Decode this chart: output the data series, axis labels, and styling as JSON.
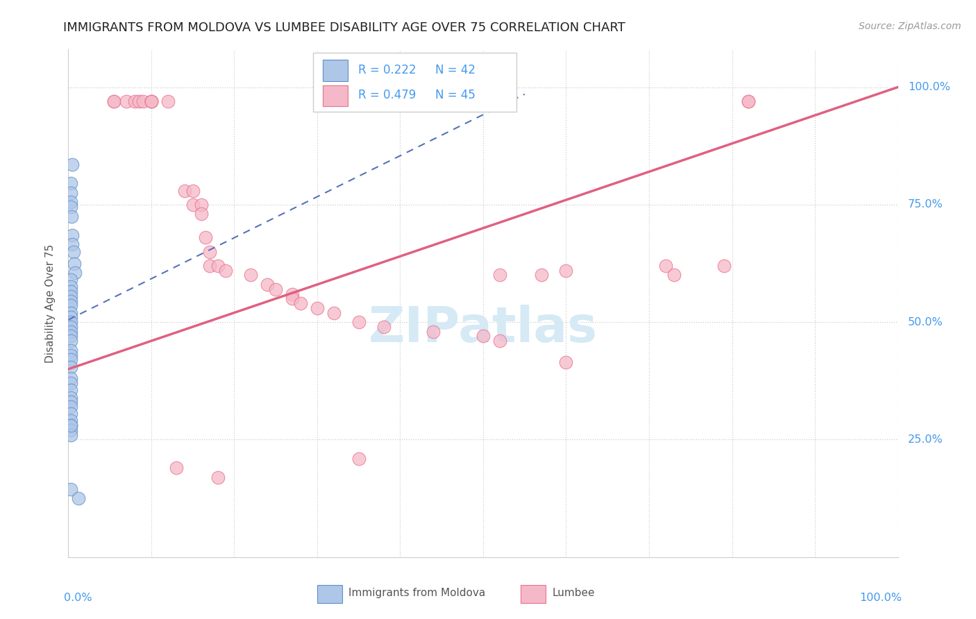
{
  "title": "IMMIGRANTS FROM MOLDOVA VS LUMBEE DISABILITY AGE OVER 75 CORRELATION CHART",
  "source": "Source: ZipAtlas.com",
  "ylabel": "Disability Age Over 75",
  "legend_r_blue": "R = 0.222",
  "legend_n_blue": "N = 42",
  "legend_r_pink": "R = 0.479",
  "legend_n_pink": "N = 45",
  "legend_label_blue": "Immigrants from Moldova",
  "legend_label_pink": "Lumbee",
  "blue_color": "#aec6e8",
  "pink_color": "#f5b8c8",
  "blue_edge_color": "#5b8fc9",
  "pink_edge_color": "#e8708a",
  "blue_line_color": "#5572b8",
  "pink_line_color": "#e06080",
  "grid_color": "#cccccc",
  "title_color": "#222222",
  "source_color": "#999999",
  "ylabel_color": "#555555",
  "tick_label_color": "#4499ee",
  "watermark_color": "#d5eaf5",
  "blue_scatter_x": [
    0.005,
    0.003,
    0.003,
    0.003,
    0.003,
    0.004,
    0.005,
    0.005,
    0.006,
    0.007,
    0.008,
    0.003,
    0.003,
    0.003,
    0.003,
    0.003,
    0.003,
    0.003,
    0.003,
    0.003,
    0.003,
    0.003,
    0.003,
    0.003,
    0.003,
    0.003,
    0.003,
    0.003,
    0.003,
    0.003,
    0.003,
    0.003,
    0.003,
    0.003,
    0.003,
    0.003,
    0.003,
    0.003,
    0.003,
    0.003,
    0.003,
    0.012
  ],
  "blue_scatter_y": [
    0.835,
    0.795,
    0.775,
    0.755,
    0.745,
    0.725,
    0.685,
    0.665,
    0.65,
    0.625,
    0.605,
    0.59,
    0.575,
    0.565,
    0.555,
    0.545,
    0.535,
    0.52,
    0.51,
    0.5,
    0.49,
    0.48,
    0.47,
    0.46,
    0.44,
    0.43,
    0.42,
    0.405,
    0.38,
    0.37,
    0.355,
    0.34,
    0.33,
    0.32,
    0.305,
    0.29,
    0.28,
    0.27,
    0.26,
    0.28,
    0.145,
    0.125
  ],
  "pink_scatter_x": [
    0.055,
    0.055,
    0.07,
    0.08,
    0.085,
    0.09,
    0.1,
    0.1,
    0.1,
    0.12,
    0.14,
    0.15,
    0.15,
    0.16,
    0.16,
    0.165,
    0.17,
    0.17,
    0.18,
    0.19,
    0.22,
    0.24,
    0.25,
    0.27,
    0.27,
    0.28,
    0.3,
    0.32,
    0.35,
    0.38,
    0.44,
    0.5,
    0.52,
    0.52,
    0.57,
    0.6,
    0.6,
    0.72,
    0.73,
    0.79,
    0.82,
    0.82,
    0.35,
    0.13,
    0.18
  ],
  "pink_scatter_y": [
    0.97,
    0.97,
    0.97,
    0.97,
    0.97,
    0.97,
    0.97,
    0.97,
    0.97,
    0.97,
    0.78,
    0.78,
    0.75,
    0.75,
    0.73,
    0.68,
    0.65,
    0.62,
    0.62,
    0.61,
    0.6,
    0.58,
    0.57,
    0.56,
    0.55,
    0.54,
    0.53,
    0.52,
    0.5,
    0.49,
    0.48,
    0.47,
    0.46,
    0.6,
    0.6,
    0.415,
    0.61,
    0.62,
    0.6,
    0.62,
    0.97,
    0.97,
    0.21,
    0.19,
    0.17
  ],
  "blue_line_x": [
    0.0,
    0.55
  ],
  "blue_line_y": [
    0.505,
    0.985
  ],
  "pink_line_x": [
    0.0,
    1.0
  ],
  "pink_line_y": [
    0.4,
    1.0
  ],
  "xlim": [
    0.0,
    1.0
  ],
  "ylim": [
    0.0,
    1.08
  ],
  "ytick_values": [
    0.25,
    0.5,
    0.75,
    1.0
  ],
  "ytick_labels": [
    "25.0%",
    "50.0%",
    "75.0%",
    "100.0%"
  ]
}
